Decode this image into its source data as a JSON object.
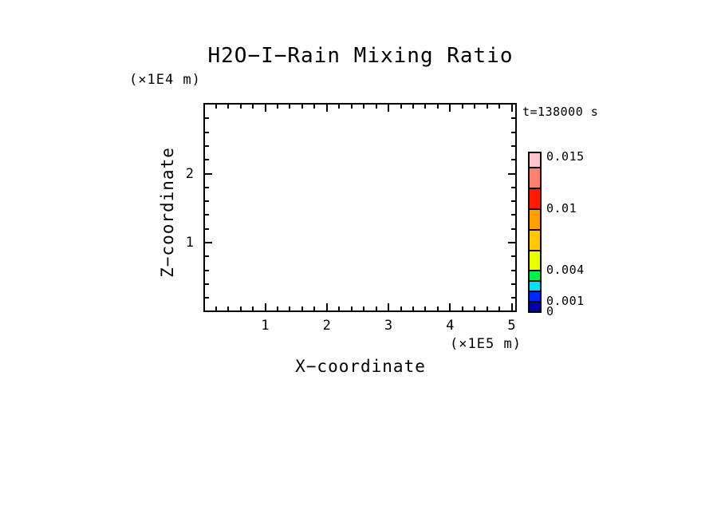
{
  "page": {
    "background": "#FFFFFF",
    "text_color": "#000000"
  },
  "chart_data": {
    "type": "heatmap",
    "title": "H2O−I−Rain Mixing Ratio",
    "annotation": "t=138000 s",
    "x_axis": {
      "label": "X−coordinate",
      "unit_label": "(×1E5 m)",
      "min": 0,
      "max": 5.06,
      "major_ticks": [
        1,
        2,
        3,
        4,
        5
      ],
      "major_tick_labels": [
        "1",
        "2",
        "3",
        "4",
        "5"
      ],
      "minor_step": 0.2
    },
    "y_axis": {
      "label": "Z−coordinate",
      "unit_label": "(×1E4 m)",
      "min": 0,
      "max": 3,
      "major_ticks": [
        1,
        2
      ],
      "major_tick_labels": [
        "1",
        "2"
      ],
      "minor_step": 0.2
    },
    "grid": false,
    "frame_color": "#000000",
    "series": [],
    "plot_area_content": "empty — no contour/fill data visible inside the axes (field below lowest level everywhere)",
    "colorbar": {
      "position": "right",
      "orientation": "vertical",
      "border_color": "#000000",
      "levels": [
        0,
        0.001,
        0.002,
        0.003,
        0.004,
        0.006,
        0.008,
        0.01,
        0.012,
        0.014,
        0.0155
      ],
      "segment_colors_bottom_to_top": [
        "#0000AA",
        "#0026FF",
        "#00DFFF",
        "#00F050",
        "#EAFF00",
        "#FFC800",
        "#FFA000",
        "#FF1A00",
        "#FA8072",
        "#FFC4CC"
      ],
      "tick_labels": [
        {
          "value": 0,
          "label": "0"
        },
        {
          "value": 0.001,
          "label": "0.001"
        },
        {
          "value": 0.004,
          "label": "0.004"
        },
        {
          "value": 0.01,
          "label": "0.01"
        },
        {
          "value": 0.015,
          "label": "0.015"
        }
      ]
    }
  }
}
